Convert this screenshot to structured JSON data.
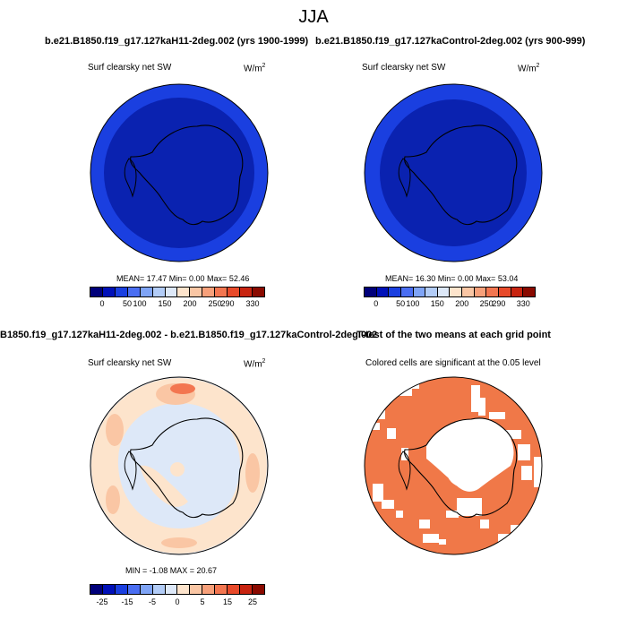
{
  "page": {
    "title": "JJA"
  },
  "panels": {
    "p1": {
      "header": "b.e21.B1850.f19_g17.127kaH11-2deg.002 (yrs 1900-1999)",
      "variable": "Surf clearsky net SW",
      "units_base": "W/m",
      "units_exp": "2",
      "stats": "MEAN=  17.47  Min=    0.00  Max=  52.46",
      "colorbar": {
        "colors": [
          "#00007a",
          "#0010b8",
          "#1a3fe0",
          "#4a6ef2",
          "#7fa4f6",
          "#b2ccf7",
          "#dde8f8",
          "#fde4cc",
          "#fac6a4",
          "#f7a07a",
          "#f37650",
          "#e84a2a",
          "#c82410",
          "#8a0a00"
        ],
        "ticks": [
          "0",
          "50",
          "100",
          "150",
          "200",
          "250",
          "290",
          "330"
        ]
      }
    },
    "p2": {
      "header": "b.e21.B1850.f19_g17.127kaControl-2deg.002 (yrs 900-999)",
      "variable": "Surf clearsky net SW",
      "units_base": "W/m",
      "units_exp": "2",
      "stats": "MEAN=  16.30  Min=    0.00  Max=  53.04",
      "colorbar": {
        "colors": [
          "#00007a",
          "#0010b8",
          "#1a3fe0",
          "#4a6ef2",
          "#7fa4f6",
          "#b2ccf7",
          "#dde8f8",
          "#fde4cc",
          "#fac6a4",
          "#f7a07a",
          "#f37650",
          "#e84a2a",
          "#c82410",
          "#8a0a00"
        ],
        "ticks": [
          "0",
          "50",
          "100",
          "150",
          "200",
          "250",
          "290",
          "330"
        ]
      }
    },
    "p3": {
      "header": "B1850.f19_g17.127kaH11-2deg.002 - b.e21.B1850.f19_g17.127kaControl-2deg.002",
      "variable": "Surf clearsky net SW",
      "units_base": "W/m",
      "units_exp": "2",
      "stats": "MIN =  -1.08 MAX =  20.67",
      "colorbar": {
        "colors": [
          "#00007a",
          "#0010b8",
          "#1a3fe0",
          "#4a6ef2",
          "#7fa4f6",
          "#b2ccf7",
          "#dde8f8",
          "#fde4cc",
          "#fac6a4",
          "#f7a07a",
          "#f37650",
          "#e84a2a",
          "#c82410",
          "#8a0a00"
        ],
        "ticks": [
          "-25",
          "-15",
          "-5",
          "0",
          "5",
          "15",
          "25"
        ]
      }
    },
    "p4": {
      "header": "T-test of the two means at each grid point",
      "variable": "Colored cells are significant at the 0.05 level"
    }
  },
  "colors": {
    "map_blue_outer": "#1a3fe0",
    "map_blue_inner": "#0a22b0",
    "diff_background": "#dde8f8",
    "diff_light": "#fde4cc",
    "diff_mid": "#fac6a4",
    "diff_high": "#f37650",
    "significance": "#f07848"
  }
}
